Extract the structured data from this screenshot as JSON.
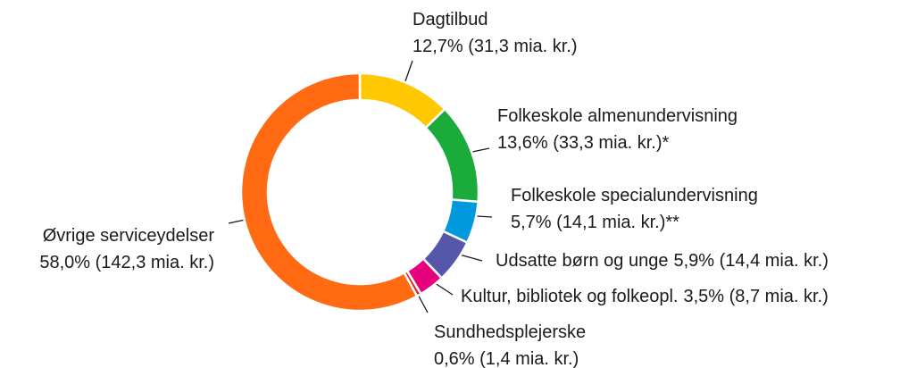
{
  "chart_data": {
    "type": "donut",
    "categories": [
      "Dagtilbud",
      "Folkeskole almenundervisning",
      "Folkeskole specialundervisning",
      "Udsatte børn og unge",
      "Kultur, bibliotek og folkeopl.",
      "Sundhedsplejerske",
      "Øvrige serviceydelser"
    ],
    "values": [
      12.7,
      13.6,
      5.7,
      5.9,
      3.5,
      0.6,
      58.0
    ],
    "value_labels": [
      "12,7% (31,3 mia. kr.)",
      "13,6% (33,3 mia. kr.)*",
      "5,7% (14,1 mia. kr.)**",
      "5,9% (14,4 mia. kr.)",
      "3,5% (8,7 mia. kr.)",
      "0,6% (1,4 mia. kr.)",
      "58,0% (142,3 mia. kr.)"
    ],
    "colors": [
      "#ffc800",
      "#1aab3a",
      "#0099dd",
      "#5558a8",
      "#e6007e",
      "#e2231a",
      "#ff6a13"
    ]
  }
}
